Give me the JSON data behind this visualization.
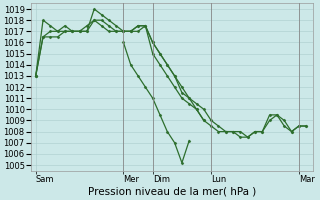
{
  "bg_color": "#cce8e8",
  "grid_color": "#aacccc",
  "line_color": "#2d6e2d",
  "xlabel": "Pression niveau de la mer( hPa )",
  "xlabel_fontsize": 7.5,
  "tick_fontsize": 6,
  "ylim": [
    1004.5,
    1019.5
  ],
  "yticks": [
    1005,
    1006,
    1007,
    1008,
    1009,
    1010,
    1011,
    1012,
    1013,
    1014,
    1015,
    1016,
    1017,
    1018,
    1019
  ],
  "day_labels": [
    "Sam",
    "Mer",
    "Dim",
    "Lun",
    "Mar"
  ],
  "day_x": [
    0,
    72,
    96,
    144,
    216
  ],
  "xlim": [
    -4,
    228
  ],
  "series1_x": [
    0,
    6,
    12,
    18,
    24,
    30,
    36,
    42,
    48,
    54,
    60,
    66,
    72,
    78,
    84,
    90,
    96,
    102,
    108,
    114,
    120,
    126,
    132,
    138,
    144,
    150,
    156,
    162,
    168,
    174,
    180,
    186,
    192,
    198,
    204,
    210,
    216,
    222
  ],
  "series1_y": [
    1013,
    1018,
    1017.5,
    1017,
    1017,
    1017,
    1017,
    1017,
    1019,
    1018.5,
    1018,
    1017.5,
    1017,
    1017,
    1017.5,
    1017.5,
    1016,
    1015,
    1014,
    1013,
    1011.5,
    1011,
    1010.5,
    1010,
    1009,
    1008.5,
    1008,
    1008,
    1008,
    1007.5,
    1008,
    1008,
    1009,
    1009.5,
    1009,
    1008,
    1008.5,
    1008.5
  ],
  "series2_x": [
    0,
    6,
    12,
    18,
    24,
    30,
    36,
    42,
    48,
    54,
    60,
    66,
    72,
    78,
    84,
    90,
    96,
    102,
    108,
    114,
    120,
    126,
    132,
    138,
    144,
    150,
    156,
    162,
    168,
    174,
    180,
    186,
    192,
    198,
    204,
    210,
    216,
    222
  ],
  "series2_y": [
    1013,
    1016.5,
    1016.5,
    1016.5,
    1017,
    1017,
    1017,
    1017.5,
    1018,
    1017.5,
    1017,
    1017,
    1017,
    1017,
    1017,
    1017.5,
    1015,
    1014,
    1013,
    1012,
    1011,
    1010.5,
    1010,
    1009,
    1008.5,
    1008,
    1008,
    1008,
    1007.5,
    1007.5,
    1008,
    1008,
    1009.5,
    1009.5,
    1008.5,
    1008,
    1008.5,
    1008.5
  ],
  "series3_x": [
    0,
    6,
    12,
    18,
    24,
    30,
    36,
    42,
    48,
    54,
    60,
    66,
    72,
    78,
    84,
    90,
    96,
    102,
    108,
    114,
    120,
    126,
    132,
    138
  ],
  "series3_y": [
    1013,
    1016.5,
    1017,
    1017,
    1017.5,
    1017,
    1017,
    1017,
    1018,
    1018,
    1017.5,
    1017,
    1017,
    1017,
    1017.5,
    1017.5,
    1016,
    1015,
    1014,
    1013,
    1012,
    1011,
    1010,
    1009
  ],
  "series4_x": [
    72,
    78,
    84,
    90,
    96,
    102,
    108,
    114,
    120,
    126
  ],
  "series4_y": [
    1016,
    1014,
    1013,
    1012,
    1011,
    1009.5,
    1008,
    1007,
    1005.2,
    1007.2
  ],
  "vline_positions": [
    72,
    96,
    144,
    216
  ],
  "vline_color": "#888888"
}
